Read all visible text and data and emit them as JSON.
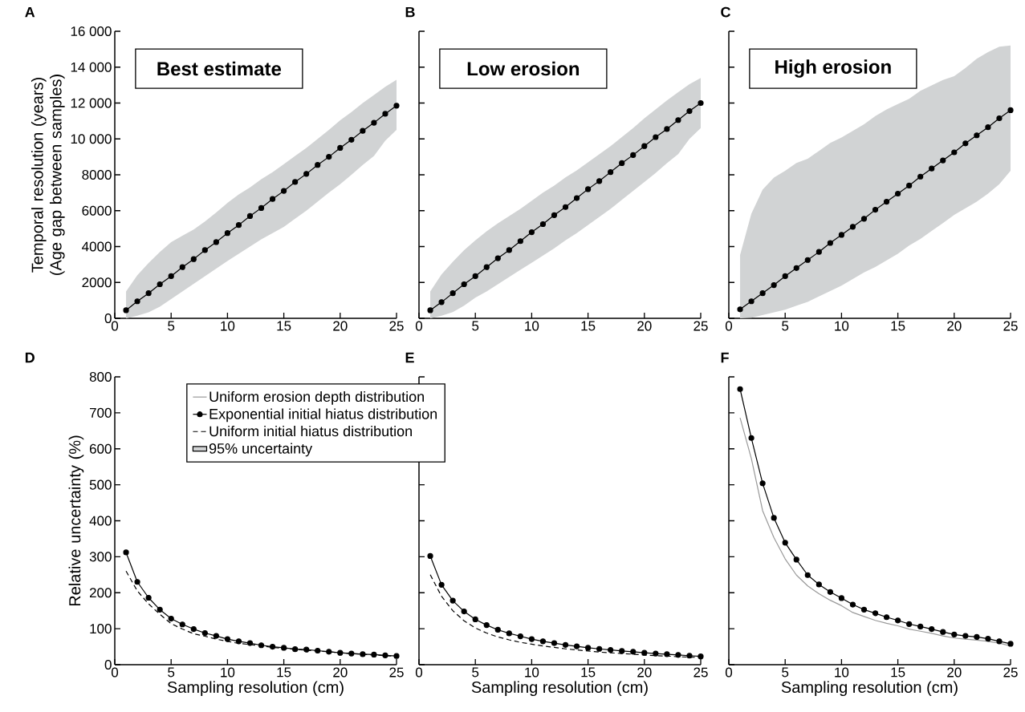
{
  "chart_data": [
    {
      "type": "line",
      "title": "A",
      "annotations": [
        "Best estimate"
      ],
      "ylabel": "Temporal resolution (years) (Age gap between samples)",
      "x": [
        1,
        2,
        3,
        4,
        5,
        6,
        7,
        8,
        9,
        10,
        11,
        12,
        13,
        14,
        15,
        16,
        17,
        18,
        19,
        20,
        21,
        22,
        23,
        24,
        25
      ],
      "xlim": [
        0,
        25
      ],
      "xticks": [
        0,
        5,
        10,
        15,
        20,
        25
      ],
      "ylim": [
        0,
        16000
      ],
      "yticks": [
        0,
        2000,
        4000,
        6000,
        8000,
        {
          "value": 10000,
          "label": "10 000"
        },
        {
          "value": 12000,
          "label": "12 000"
        },
        {
          "value": 14000,
          "label": "14 000"
        },
        {
          "value": 16000,
          "label": "16 000"
        }
      ],
      "series": [
        {
          "color": "#000000",
          "marker": "circle",
          "values": [
            450,
            950,
            1400,
            1900,
            2350,
            2850,
            3300,
            3800,
            4250,
            4750,
            5200,
            5700,
            6150,
            6650,
            7100,
            7600,
            8050,
            8550,
            9000,
            9500,
            9950,
            10450,
            10900,
            11400,
            11850
          ],
          "lower": [
            0,
            150,
            330,
            650,
            1070,
            1500,
            1920,
            2350,
            2770,
            3200,
            3600,
            4000,
            4400,
            4750,
            5090,
            5550,
            6000,
            6500,
            7000,
            7470,
            8000,
            8550,
            9050,
            9900,
            10500
          ],
          "upper": [
            1500,
            2400,
            3080,
            3700,
            4250,
            4600,
            4950,
            5400,
            5900,
            6430,
            6900,
            7300,
            7750,
            8150,
            8590,
            9050,
            9500,
            10000,
            10500,
            11040,
            11500,
            12000,
            12450,
            12900,
            13300
          ]
        }
      ]
    },
    {
      "type": "line",
      "title": "B",
      "annotations": [
        "Low erosion"
      ],
      "tick_labels": "x",
      "x": [
        1,
        2,
        3,
        4,
        5,
        6,
        7,
        8,
        9,
        10,
        11,
        12,
        13,
        14,
        15,
        16,
        17,
        18,
        19,
        20,
        21,
        22,
        23,
        24,
        25
      ],
      "xlim": [
        0,
        25
      ],
      "xticks": [
        0,
        5,
        10,
        15,
        20,
        25
      ],
      "ylim": [
        0,
        16000
      ],
      "yticks": [
        0,
        2000,
        4000,
        6000,
        8000,
        10000,
        12000,
        14000,
        16000
      ],
      "series": [
        {
          "color": "#000000",
          "marker": "circle",
          "values": [
            450,
            900,
            1400,
            1900,
            2350,
            2850,
            3350,
            3800,
            4300,
            4800,
            5250,
            5750,
            6200,
            6700,
            7200,
            7650,
            8150,
            8650,
            9100,
            9600,
            10100,
            10550,
            11050,
            11550,
            12000
          ],
          "lower": [
            0,
            150,
            350,
            700,
            1150,
            1500,
            1900,
            2300,
            2700,
            3100,
            3500,
            3900,
            4350,
            4750,
            5200,
            5650,
            6100,
            6600,
            7100,
            7600,
            8100,
            8650,
            9150,
            10000,
            10600
          ],
          "upper": [
            1500,
            2450,
            3150,
            3800,
            4350,
            4850,
            5300,
            5700,
            6100,
            6550,
            7000,
            7400,
            7850,
            8250,
            8700,
            9150,
            9600,
            10100,
            10600,
            11150,
            11650,
            12150,
            12600,
            13050,
            13400
          ]
        }
      ]
    },
    {
      "type": "line",
      "title": "C",
      "annotations": [
        "High erosion"
      ],
      "tick_labels": "x",
      "x": [
        1,
        2,
        3,
        4,
        5,
        6,
        7,
        8,
        9,
        10,
        11,
        12,
        13,
        14,
        15,
        16,
        17,
        18,
        19,
        20,
        21,
        22,
        23,
        24,
        25
      ],
      "xlim": [
        0,
        25
      ],
      "xticks": [
        0,
        5,
        10,
        15,
        20,
        25
      ],
      "ylim": [
        0,
        16000
      ],
      "yticks": [
        0,
        2000,
        4000,
        6000,
        8000,
        10000,
        12000,
        14000,
        16000
      ],
      "series": [
        {
          "color": "#000000",
          "marker": "circle",
          "values": [
            500,
            950,
            1400,
            1850,
            2350,
            2800,
            3250,
            3700,
            4200,
            4650,
            5100,
            5550,
            6050,
            6500,
            6950,
            7400,
            7900,
            8350,
            8800,
            9250,
            9750,
            10200,
            10650,
            11150,
            11600
          ],
          "lower": [
            0,
            30,
            180,
            330,
            480,
            700,
            920,
            1220,
            1520,
            1820,
            2190,
            2560,
            2860,
            3230,
            3600,
            4050,
            4420,
            4870,
            5310,
            5760,
            6130,
            6500,
            6950,
            7470,
            8220
          ],
          "upper": [
            3530,
            5830,
            7170,
            7840,
            8220,
            8660,
            8890,
            9330,
            9780,
            10080,
            10450,
            10820,
            11270,
            11640,
            11940,
            12230,
            12680,
            12980,
            13280,
            13500,
            13950,
            14470,
            14840,
            15140,
            15210
          ]
        }
      ]
    },
    {
      "type": "line",
      "title": "D",
      "ylabel": "Relative uncertainty (%)",
      "xlabel": "Sampling resolution (cm)",
      "legend": "top",
      "x": [
        1,
        2,
        3,
        4,
        5,
        6,
        7,
        8,
        9,
        10,
        11,
        12,
        13,
        14,
        15,
        16,
        17,
        18,
        19,
        20,
        21,
        22,
        23,
        24,
        25
      ],
      "xlim": [
        0,
        25
      ],
      "xticks": [
        0,
        5,
        10,
        15,
        20,
        25
      ],
      "ylim": [
        0,
        800
      ],
      "yticks": [
        0,
        100,
        200,
        300,
        400,
        500,
        600,
        700,
        800
      ],
      "series": [
        {
          "name": "Uniform erosion depth distribution",
          "color": "#999999",
          "marker": "none",
          "values": [
            null,
            null,
            null,
            null,
            null,
            null,
            null,
            null,
            null,
            null,
            null,
            null,
            null,
            null,
            null,
            null,
            null,
            null,
            null,
            null,
            null,
            null,
            null,
            null,
            null
          ]
        },
        {
          "name": "Exponential initial hiatus distribution",
          "color": "#000000",
          "marker": "circle",
          "values": [
            312,
            230,
            186,
            153,
            128,
            112,
            99,
            88,
            80,
            71,
            65,
            60,
            54,
            50,
            47,
            43,
            42,
            39,
            36,
            33,
            31,
            29,
            28,
            26,
            24
          ]
        },
        {
          "name": "Uniform initial hiatus distribution",
          "color": "#000000",
          "marker": "none",
          "line_style": "dashed",
          "values": [
            260,
            205,
            169,
            140,
            114,
            99,
            86,
            79,
            71,
            65,
            59,
            56,
            52,
            48,
            45,
            43,
            40,
            38,
            36,
            33,
            31,
            29,
            27,
            25,
            23
          ]
        },
        {
          "name": "95% uncertainty",
          "type": "area",
          "color": "#d1d3d4",
          "values": [
            null,
            null,
            null,
            null,
            null,
            null,
            null,
            null,
            null,
            null,
            null,
            null,
            null,
            null,
            null,
            null,
            null,
            null,
            null,
            null,
            null,
            null,
            null,
            null,
            null
          ]
        }
      ]
    },
    {
      "type": "line",
      "title": "E",
      "xlabel": "Sampling resolution (cm)",
      "tick_labels": "x",
      "x": [
        1,
        2,
        3,
        4,
        5,
        6,
        7,
        8,
        9,
        10,
        11,
        12,
        13,
        14,
        15,
        16,
        17,
        18,
        19,
        20,
        21,
        22,
        23,
        24,
        25
      ],
      "xlim": [
        0,
        25
      ],
      "xticks": [
        0,
        5,
        10,
        15,
        20,
        25
      ],
      "ylim": [
        0,
        800
      ],
      "yticks": [
        0,
        100,
        200,
        300,
        400,
        500,
        600,
        700,
        800
      ],
      "series": [
        {
          "color": "#000000",
          "marker": "circle",
          "values": [
            302,
            222,
            178,
            148,
            126,
            110,
            97,
            87,
            79,
            71,
            65,
            60,
            55,
            51,
            47,
            44,
            41,
            38,
            36,
            33,
            31,
            29,
            27,
            25,
            23
          ]
        },
        {
          "color": "#000000",
          "marker": "none",
          "line_style": "dashed",
          "values": [
            250,
            190,
            150,
            122,
            102,
            88,
            77,
            69,
            62,
            57,
            52,
            48,
            44,
            41,
            38,
            35,
            33,
            31,
            29,
            27,
            25,
            24,
            22,
            21,
            20
          ]
        }
      ]
    },
    {
      "type": "line",
      "title": "F",
      "xlabel": "Sampling resolution (cm)",
      "tick_labels": "x",
      "x": [
        1,
        2,
        3,
        4,
        5,
        6,
        7,
        8,
        9,
        10,
        11,
        12,
        13,
        14,
        15,
        16,
        17,
        18,
        19,
        20,
        21,
        22,
        23,
        24,
        25
      ],
      "xlim": [
        0,
        25
      ],
      "xticks": [
        0,
        5,
        10,
        15,
        20,
        25
      ],
      "ylim": [
        0,
        800
      ],
      "yticks": [
        0,
        100,
        200,
        300,
        400,
        500,
        600,
        700,
        800
      ],
      "series": [
        {
          "color": "#999999",
          "marker": "none",
          "values": [
            686,
            573,
            428,
            353,
            294,
            249,
            219,
            197,
            179,
            164,
            145,
            134,
            123,
            115,
            108,
            99,
            93,
            87,
            80,
            74,
            71,
            68,
            65,
            60,
            52
          ]
        },
        {
          "color": "#000000",
          "marker": "circle",
          "values": [
            766,
            630,
            504,
            408,
            339,
            292,
            249,
            223,
            202,
            185,
            167,
            153,
            143,
            132,
            123,
            113,
            106,
            99,
            91,
            84,
            80,
            77,
            72,
            65,
            58
          ]
        }
      ]
    }
  ]
}
